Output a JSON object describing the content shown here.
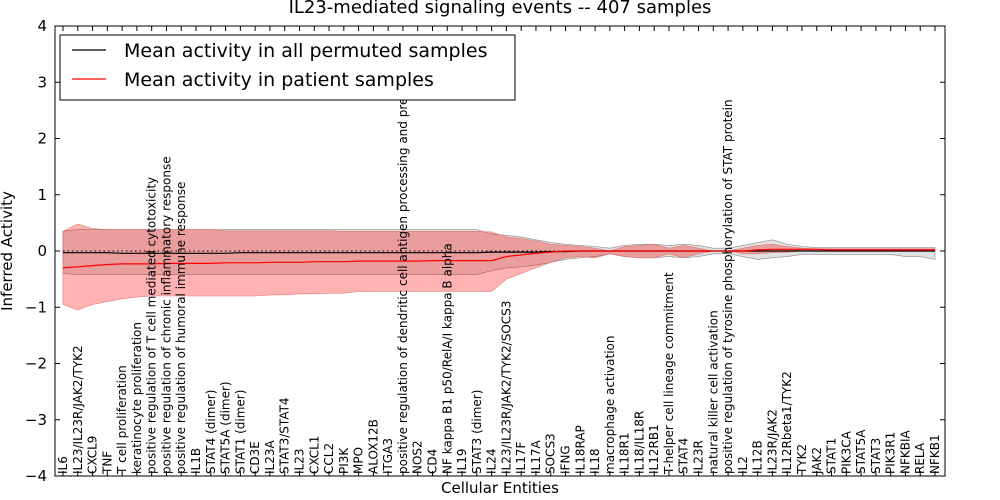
{
  "chart_data": {
    "type": "line",
    "title": "IL23-mediated signaling events -- 407 samples",
    "xlabel": "Cellular Entities",
    "ylabel": "Inferred Activity",
    "ylim": [
      -4,
      4
    ],
    "yticks": [
      -4,
      -3,
      -2,
      -1,
      0,
      1,
      2,
      3,
      4
    ],
    "ytick_labels": [
      "−4",
      "−3",
      "−2",
      "−1",
      "0",
      "1",
      "2",
      "3",
      "4"
    ],
    "legend_location": "top-left",
    "categories": [
      "IL6",
      "IL23/IL23R/JAK2/TYK2",
      "CXCL9",
      "TNF",
      "T cell proliferation",
      "keratinocyte proliferation",
      "positive regulation of T cell mediated cytotoxicity",
      "positive regulation of chronic inflammatory response",
      "positive regulation of humoral immune response",
      "IL1B",
      "STAT4 (dimer)",
      "STAT5A (dimer)",
      "STAT1 (dimer)",
      "CD3E",
      "IL23A",
      "STAT3/STAT4",
      "IL23",
      "CXCL1",
      "CCL2",
      "PI3K",
      "MPO",
      "ALOX12B",
      "ITGA3",
      "positive regulation of dendritic cell antigen processing and presentation",
      "NOS2",
      "CD4",
      "NF kappa B1 p50/RelA/I kappa B alpha",
      "IL19",
      "STAT3 (dimer)",
      "IL24",
      "IL23/IL23R/JAK2/TYK2/SOCS3",
      "IL17F",
      "IL17A",
      "SOCS3",
      "IFNG",
      "IL18RAP",
      "IL18",
      "macrophage activation",
      "IL18R1",
      "IL18/IL18R",
      "IL12RB1",
      "T-helper cell lineage commitment",
      "STAT4",
      "IL23R",
      "natural killer cell activation",
      "positive regulation of tyrosine phosphorylation of STAT protein",
      "IL2",
      "IL12B",
      "IL23R/JAK2",
      "IL12Rbeta1/TYK2",
      "TYK2",
      "JAK2",
      "STAT1",
      "PIK3CA",
      "STAT5A",
      "STAT3",
      "PIK3R1",
      "NFKBIA",
      "RELA",
      "NFKB1"
    ],
    "series": [
      {
        "name": "Mean activity in all permuted samples",
        "color": "#000000",
        "values": [
          -0.03,
          -0.03,
          -0.03,
          -0.03,
          -0.04,
          -0.04,
          -0.04,
          -0.04,
          -0.04,
          -0.04,
          -0.04,
          -0.04,
          -0.03,
          -0.03,
          -0.03,
          -0.03,
          -0.03,
          -0.03,
          -0.03,
          -0.03,
          -0.03,
          -0.03,
          -0.03,
          -0.03,
          -0.03,
          -0.03,
          -0.03,
          -0.03,
          -0.03,
          -0.02,
          -0.02,
          -0.02,
          -0.02,
          -0.01,
          -0.01,
          0.0,
          0.0,
          0.0,
          0.0,
          0.0,
          0.0,
          0.0,
          0.0,
          0.0,
          0.0,
          0.0,
          0.0,
          0.0,
          0.0,
          0.0,
          0.0,
          0.0,
          0.0,
          0.0,
          0.0,
          0.0,
          0.0,
          0.0,
          0.0,
          0.0
        ],
        "band_low": [
          -0.4,
          -0.42,
          -0.42,
          -0.42,
          -0.42,
          -0.42,
          -0.42,
          -0.42,
          -0.42,
          -0.42,
          -0.42,
          -0.42,
          -0.42,
          -0.42,
          -0.42,
          -0.42,
          -0.42,
          -0.42,
          -0.42,
          -0.42,
          -0.42,
          -0.42,
          -0.42,
          -0.42,
          -0.42,
          -0.42,
          -0.42,
          -0.42,
          -0.42,
          -0.35,
          -0.3,
          -0.28,
          -0.25,
          -0.2,
          -0.15,
          -0.12,
          -0.1,
          -0.05,
          -0.1,
          -0.12,
          -0.12,
          -0.1,
          -0.12,
          -0.1,
          -0.05,
          -0.05,
          -0.1,
          -0.15,
          -0.12,
          -0.1,
          -0.06,
          -0.06,
          -0.06,
          -0.06,
          -0.06,
          -0.06,
          -0.06,
          -0.1,
          -0.1,
          -0.15
        ],
        "band_high": [
          0.35,
          0.38,
          0.38,
          0.38,
          0.38,
          0.38,
          0.38,
          0.38,
          0.38,
          0.38,
          0.38,
          0.38,
          0.38,
          0.38,
          0.38,
          0.38,
          0.38,
          0.38,
          0.38,
          0.38,
          0.38,
          0.38,
          0.38,
          0.38,
          0.38,
          0.38,
          0.38,
          0.38,
          0.38,
          0.3,
          0.28,
          0.25,
          0.2,
          0.15,
          0.12,
          0.1,
          0.08,
          0.05,
          0.1,
          0.12,
          0.12,
          0.1,
          0.12,
          0.1,
          0.05,
          0.05,
          0.1,
          0.15,
          0.2,
          0.12,
          0.08,
          0.06,
          0.06,
          0.06,
          0.06,
          0.06,
          0.06,
          0.06,
          0.06,
          0.06
        ]
      },
      {
        "name": "Mean activity in patient samples",
        "color": "#ff0000",
        "values": [
          -0.3,
          -0.28,
          -0.26,
          -0.24,
          -0.23,
          -0.23,
          -0.23,
          -0.22,
          -0.22,
          -0.22,
          -0.22,
          -0.21,
          -0.21,
          -0.21,
          -0.2,
          -0.2,
          -0.2,
          -0.19,
          -0.19,
          -0.19,
          -0.18,
          -0.18,
          -0.18,
          -0.18,
          -0.18,
          -0.17,
          -0.17,
          -0.17,
          -0.17,
          -0.17,
          -0.1,
          -0.07,
          -0.04,
          -0.02,
          0.0,
          0.0,
          0.0,
          0.0,
          0.0,
          0.0,
          0.0,
          0.0,
          0.0,
          0.0,
          0.0,
          0.0,
          0.0,
          0.02,
          0.03,
          0.03,
          0.03,
          0.03,
          0.02,
          0.02,
          0.02,
          0.02,
          0.02,
          0.02,
          0.02,
          0.02
        ],
        "band_low": [
          -0.95,
          -1.05,
          -0.95,
          -0.9,
          -0.85,
          -0.82,
          -0.8,
          -0.8,
          -0.8,
          -0.8,
          -0.8,
          -0.8,
          -0.8,
          -0.8,
          -0.78,
          -0.78,
          -0.76,
          -0.76,
          -0.75,
          -0.75,
          -0.72,
          -0.72,
          -0.72,
          -0.72,
          -0.72,
          -0.72,
          -0.72,
          -0.72,
          -0.72,
          -0.72,
          -0.5,
          -0.4,
          -0.3,
          -0.2,
          -0.12,
          -0.1,
          -0.12,
          -0.05,
          -0.1,
          -0.12,
          -0.12,
          -0.05,
          -0.12,
          -0.05,
          0.0,
          0.0,
          -0.05,
          -0.05,
          -0.03,
          -0.02,
          0.0,
          0.0,
          0.0,
          0.0,
          0.0,
          0.0,
          0.0,
          0.0,
          0.0,
          0.0
        ],
        "band_high": [
          0.35,
          0.48,
          0.4,
          0.38,
          0.38,
          0.38,
          0.38,
          0.38,
          0.38,
          0.38,
          0.38,
          0.36,
          0.36,
          0.36,
          0.36,
          0.36,
          0.36,
          0.36,
          0.36,
          0.35,
          0.35,
          0.35,
          0.35,
          0.35,
          0.35,
          0.35,
          0.35,
          0.35,
          0.35,
          0.34,
          0.25,
          0.22,
          0.18,
          0.12,
          0.1,
          0.08,
          0.05,
          0.0,
          0.08,
          0.1,
          0.12,
          0.05,
          0.1,
          0.05,
          0.0,
          0.0,
          0.05,
          0.1,
          0.12,
          0.08,
          0.05,
          0.04,
          0.04,
          0.04,
          0.04,
          0.04,
          0.04,
          0.04,
          0.04,
          0.04
        ]
      }
    ]
  }
}
